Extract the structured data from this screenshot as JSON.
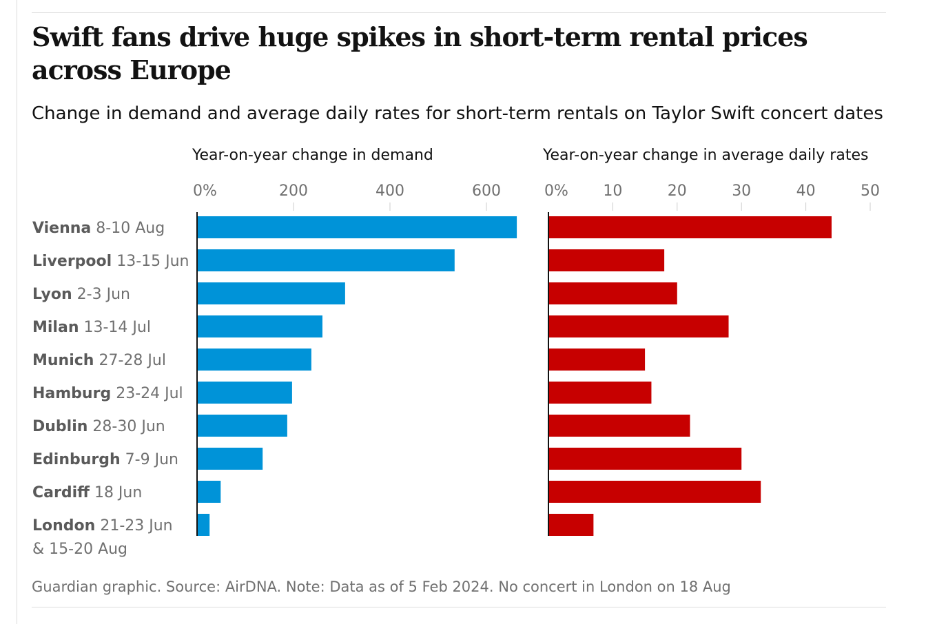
{
  "title": "Swift fans drive huge spikes in short-term rental prices across Europe",
  "subtitle": "Change in demand and average daily rates for short-term rentals on Taylor Swift concert dates",
  "source": "Guardian graphic. Source: AirDNA. Note: Data as of 5 Feb 2024. No concert in London on 18 Aug",
  "chart_data": [
    {
      "type": "bar",
      "orientation": "horizontal",
      "title": "Year-on-year change in demand",
      "color": "#0093d8",
      "ticks": [
        "0%",
        "200",
        "400",
        "600"
      ],
      "tick_values": [
        0,
        200,
        400,
        600
      ],
      "xlim": [
        0,
        680
      ],
      "categories": [
        [
          "Vienna",
          "8-10 Aug"
        ],
        [
          "Liverpool",
          "13-15 Jun"
        ],
        [
          "Lyon",
          "2-3 Jun"
        ],
        [
          "Milan",
          "13-14 Jul"
        ],
        [
          "Munich",
          "27-28 Jul"
        ],
        [
          "Hamburg",
          "23-24 Jul"
        ],
        [
          "Dublin",
          "28-30 Jun"
        ],
        [
          "Edinburgh",
          "7-9 Jun"
        ],
        [
          "Cardiff",
          "18 Jun"
        ],
        [
          "London",
          "21-23 Jun",
          "& 15-20 Aug"
        ]
      ],
      "values": [
        663,
        534,
        307,
        260,
        237,
        197,
        187,
        136,
        49,
        26
      ]
    },
    {
      "type": "bar",
      "orientation": "horizontal",
      "title": "Year-on-year change in average daily rates",
      "color": "#c70000",
      "ticks": [
        "0%",
        "10",
        "20",
        "30",
        "40",
        "50"
      ],
      "tick_values": [
        0,
        10,
        20,
        30,
        40,
        50
      ],
      "xlim": [
        0,
        50
      ],
      "values": [
        44,
        18,
        20,
        28,
        15,
        16,
        22,
        30,
        33,
        7
      ]
    }
  ]
}
